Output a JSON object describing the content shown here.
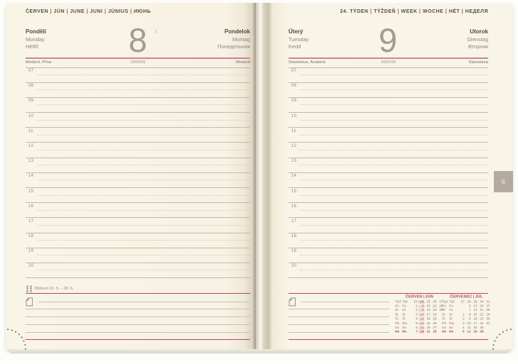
{
  "accent_colors": {
    "red": "#b5455b",
    "pink_rule": "#cf8398",
    "paper": "#f7f2e3",
    "tab_gray": "#b2ab9e"
  },
  "left_page": {
    "month_header": [
      "ČERVEN",
      "JÚN",
      "JUNE",
      "JUNI",
      "JÚNIUS",
      "ИЮНЬ"
    ],
    "day": {
      "number": "8",
      "moon": "☾",
      "names_left": [
        "Pondělí",
        "Monday",
        "Hétfő"
      ],
      "names_right": [
        "Pondelok",
        "Montag",
        "Понедельник"
      ]
    },
    "nameday": {
      "left": "Medard, Plíva",
      "day_of_year": "159/206",
      "right": "Medard"
    },
    "hours": [
      "07",
      "08",
      "09",
      "10",
      "11",
      "12",
      "13",
      "14",
      "15",
      "16",
      "17",
      "18",
      "19",
      "20"
    ],
    "zodiac_label": "Blíženci 21. 5. – 20. 6."
  },
  "right_page": {
    "week_header": [
      "24. TÝDEN",
      "TÝŽDEŇ",
      "WEEK",
      "WOCHE",
      "HÉT",
      "НЕДЕЛЯ"
    ],
    "day": {
      "number": "9",
      "names_left": [
        "Úterý",
        "Tuesday",
        "Kedd"
      ],
      "names_right": [
        "Utorok",
        "Dienstag",
        "Вторник"
      ]
    },
    "nameday": {
      "left": "Stanislava, Anabela",
      "day_of_year": "160/205",
      "right": "Stanislava"
    },
    "hours": [
      "07",
      "08",
      "09",
      "10",
      "11",
      "12",
      "13",
      "14",
      "15",
      "16",
      "17",
      "18",
      "19",
      "20"
    ],
    "month_tab": "6",
    "calendars": [
      {
        "title": [
          "ČERVEN",
          "JÚN"
        ],
        "highlight_col": 1,
        "rows": [
          {
            "cz": "Týd",
            "sk": "Týž",
            "week": true,
            "vals": [
              "23",
              "24",
              "25",
              "26",
              "27"
            ]
          },
          {
            "cz": "Po",
            "sk": "Po",
            "vals": [
              "1",
              "8",
              "15",
              "22",
              "29"
            ]
          },
          {
            "cz": "Út",
            "sk": "Ut",
            "vals": [
              "2",
              "9",
              "16",
              "23",
              "30"
            ]
          },
          {
            "cz": "St",
            "sk": "St",
            "vals": [
              "3",
              "10",
              "17",
              "24",
              ""
            ]
          },
          {
            "cz": "Čt",
            "sk": "Št",
            "vals": [
              "4",
              "11",
              "18",
              "25",
              ""
            ]
          },
          {
            "cz": "Pá",
            "sk": "Pia",
            "vals": [
              "5",
              "12",
              "19",
              "26",
              ""
            ]
          },
          {
            "cz": "So",
            "sk": "So",
            "vals": [
              "6",
              "13",
              "20",
              "27",
              ""
            ]
          },
          {
            "cz": "Ne",
            "sk": "Ne",
            "red": true,
            "vals": [
              "7",
              "14",
              "21",
              "28",
              ""
            ]
          }
        ]
      },
      {
        "title": [
          "ČERVENEC",
          "JÚL"
        ],
        "highlight_col": null,
        "rows": [
          {
            "cz": "Týd",
            "sk": "Týž",
            "week": true,
            "vals": [
              "27",
              "28",
              "29",
              "30",
              "31"
            ]
          },
          {
            "cz": "Po",
            "sk": "Po",
            "vals": [
              "",
              "6",
              "13",
              "20",
              "27"
            ]
          },
          {
            "cz": "Út",
            "sk": "Ut",
            "vals": [
              "",
              "7",
              "14",
              "21",
              "28"
            ]
          },
          {
            "cz": "St",
            "sk": "St",
            "vals": [
              "1",
              "8",
              "15",
              "22",
              "29"
            ]
          },
          {
            "cz": "Čt",
            "sk": "Št",
            "vals": [
              "2",
              "9",
              "16",
              "23",
              "30"
            ]
          },
          {
            "cz": "Pá",
            "sk": "Pia",
            "vals": [
              "3",
              "10",
              "17",
              "24",
              "31"
            ]
          },
          {
            "cz": "So",
            "sk": "So",
            "vals": [
              "4",
              "11",
              "18",
              "25",
              ""
            ]
          },
          {
            "cz": "Ne",
            "sk": "Ne",
            "red": true,
            "vals": [
              "5",
              "12",
              "19",
              "26",
              ""
            ]
          }
        ]
      }
    ]
  }
}
